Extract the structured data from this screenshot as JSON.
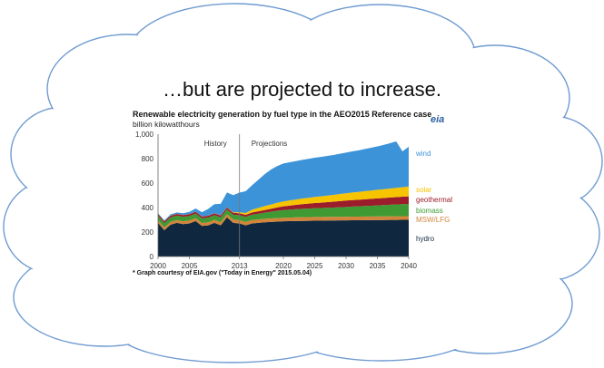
{
  "headline": "…but are projected to increase.",
  "logo_text": "eia",
  "footnote": "* Graph courtesy of EIA.gov (\"Today in Energy\" 2015.05.04)",
  "colors": {
    "hydro": "#10283f",
    "msw_lfg": "#d2853a",
    "biomass": "#3f9a34",
    "geothermal": "#9b1c2a",
    "solar": "#f6c400",
    "wind": "#3d93d8",
    "cloud_outline": "#6f9bd1"
  },
  "chart_data": {
    "type": "area",
    "title": "Renewable electricity generation by fuel type in the AEO2015  Reference case",
    "ylabel": "billion kilowatthours",
    "xlabel": "",
    "xlim": [
      2000,
      2040
    ],
    "ylim": [
      0,
      1000
    ],
    "x_ticks": [
      "2000",
      "2005",
      "2013",
      "2020",
      "2025",
      "2030",
      "2035",
      "2040"
    ],
    "x_tick_values": [
      2000,
      2005,
      2013,
      2020,
      2025,
      2030,
      2035,
      2040
    ],
    "y_ticks": [
      "0",
      "200",
      "400",
      "600",
      "800",
      "1,000"
    ],
    "y_tick_values": [
      0,
      200,
      400,
      600,
      800,
      1000
    ],
    "divider_year": 2013,
    "annotations": [
      "History",
      "Projections"
    ],
    "stacked": true,
    "x": [
      2000,
      2001,
      2002,
      2003,
      2004,
      2005,
      2006,
      2007,
      2008,
      2009,
      2010,
      2011,
      2012,
      2013,
      2014,
      2015,
      2016,
      2017,
      2018,
      2019,
      2020,
      2021,
      2022,
      2023,
      2024,
      2025,
      2026,
      2027,
      2028,
      2029,
      2030,
      2031,
      2032,
      2033,
      2034,
      2035,
      2036,
      2037,
      2038,
      2039,
      2040
    ],
    "series": [
      {
        "name": "hydro",
        "values": [
          275,
          215,
          260,
          275,
          265,
          270,
          290,
          250,
          255,
          275,
          255,
          320,
          275,
          270,
          255,
          270,
          275,
          280,
          282,
          285,
          288,
          289,
          290,
          291,
          292,
          293,
          293,
          294,
          294,
          295,
          295,
          296,
          296,
          297,
          297,
          298,
          298,
          299,
          299,
          300,
          300
        ]
      },
      {
        "name": "MSW/LFG",
        "values": [
          22,
          22,
          23,
          23,
          23,
          24,
          24,
          24,
          25,
          25,
          26,
          26,
          27,
          27,
          27,
          28,
          28,
          28,
          29,
          29,
          29,
          29,
          30,
          30,
          30,
          30,
          30,
          30,
          30,
          30,
          30,
          30,
          30,
          30,
          30,
          30,
          30,
          30,
          30,
          30,
          30
        ]
      },
      {
        "name": "biomass",
        "values": [
          36,
          36,
          36,
          36,
          37,
          37,
          37,
          38,
          38,
          38,
          39,
          39,
          40,
          40,
          42,
          44,
          46,
          50,
          55,
          60,
          63,
          65,
          67,
          69,
          70,
          72,
          73,
          74,
          76,
          78,
          80,
          82,
          84,
          86,
          88,
          90,
          92,
          94,
          96,
          98,
          100
        ]
      },
      {
        "name": "geothermal",
        "values": [
          14,
          14,
          14,
          14,
          14,
          15,
          15,
          15,
          15,
          15,
          15,
          16,
          16,
          16,
          17,
          18,
          20,
          22,
          24,
          27,
          30,
          33,
          35,
          38,
          40,
          42,
          44,
          46,
          48,
          50,
          52,
          53,
          54,
          55,
          56,
          57,
          58,
          59,
          60,
          61,
          62
        ]
      },
      {
        "name": "solar",
        "values": [
          1,
          1,
          1,
          1,
          1,
          1,
          1,
          1,
          1,
          1,
          2,
          2,
          4,
          9,
          15,
          22,
          28,
          32,
          35,
          38,
          40,
          42,
          44,
          46,
          48,
          50,
          52,
          54,
          56,
          58,
          60,
          62,
          64,
          66,
          68,
          70,
          72,
          74,
          76,
          78,
          80
        ]
      },
      {
        "name": "wind",
        "values": [
          6,
          7,
          10,
          11,
          14,
          18,
          26,
          34,
          55,
          74,
          94,
          120,
          140,
          160,
          178,
          200,
          230,
          260,
          285,
          300,
          310,
          312,
          314,
          316,
          318,
          320,
          322,
          324,
          326,
          329,
          332,
          336,
          340,
          345,
          350,
          355,
          362,
          370,
          380,
          292,
          325
        ]
      }
    ],
    "grid": false,
    "legend": "right"
  }
}
